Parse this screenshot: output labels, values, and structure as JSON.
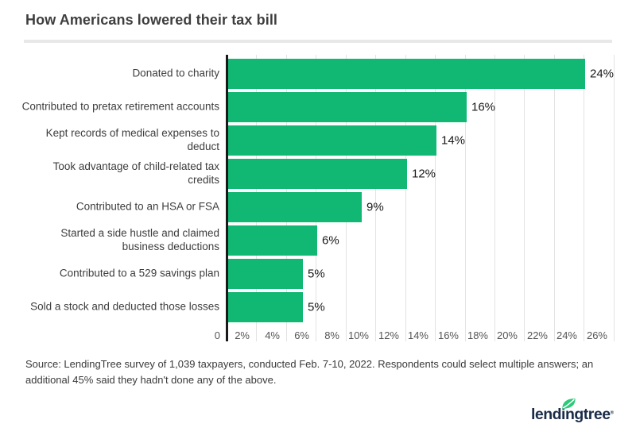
{
  "title": "How Americans lowered their tax bill",
  "chart_data": {
    "type": "bar",
    "orientation": "horizontal",
    "title": "How Americans lowered their tax bill",
    "categories": [
      "Donated to charity",
      "Contributed to pretax retirement accounts",
      "Kept records of medical expenses to deduct",
      "Took advantage of child-related tax credits",
      "Contributed to an HSA or FSA",
      "Started a side hustle and claimed business deductions",
      "Contributed to a 529 savings plan",
      "Sold a stock and deducted those losses"
    ],
    "values": [
      24,
      16,
      14,
      12,
      9,
      6,
      5,
      5
    ],
    "value_labels": [
      "24%",
      "16%",
      "14%",
      "12%",
      "9%",
      "6%",
      "5%",
      "5%"
    ],
    "xlabel": "",
    "ylabel": "",
    "xlim": [
      0,
      26
    ],
    "x_ticks": [
      "0",
      "2%",
      "4%",
      "6%",
      "8%",
      "10%",
      "12%",
      "14%",
      "16%",
      "18%",
      "20%",
      "22%",
      "24%",
      "26%"
    ],
    "x_tick_values": [
      0,
      2,
      4,
      6,
      8,
      10,
      12,
      14,
      16,
      18,
      20,
      22,
      24,
      26
    ],
    "grid": true,
    "legend": false
  },
  "source_note": "Source: LendingTree survey of 1,039 taxpayers, conducted Feb. 7-10, 2022. Respondents could select multiple answers; an additional 45% said they hadn't done any of the above.",
  "footer": {
    "logo_text": "lendingtree",
    "logo_registered": "®"
  },
  "colors": {
    "bar_green": "#10b873",
    "axis_line": "#1a1a1a",
    "gridline": "#e3e3e3",
    "logo_navy": "#1b2c49",
    "leaf_green": "#2bc97a",
    "divider_gray": "#e8e8e8"
  }
}
